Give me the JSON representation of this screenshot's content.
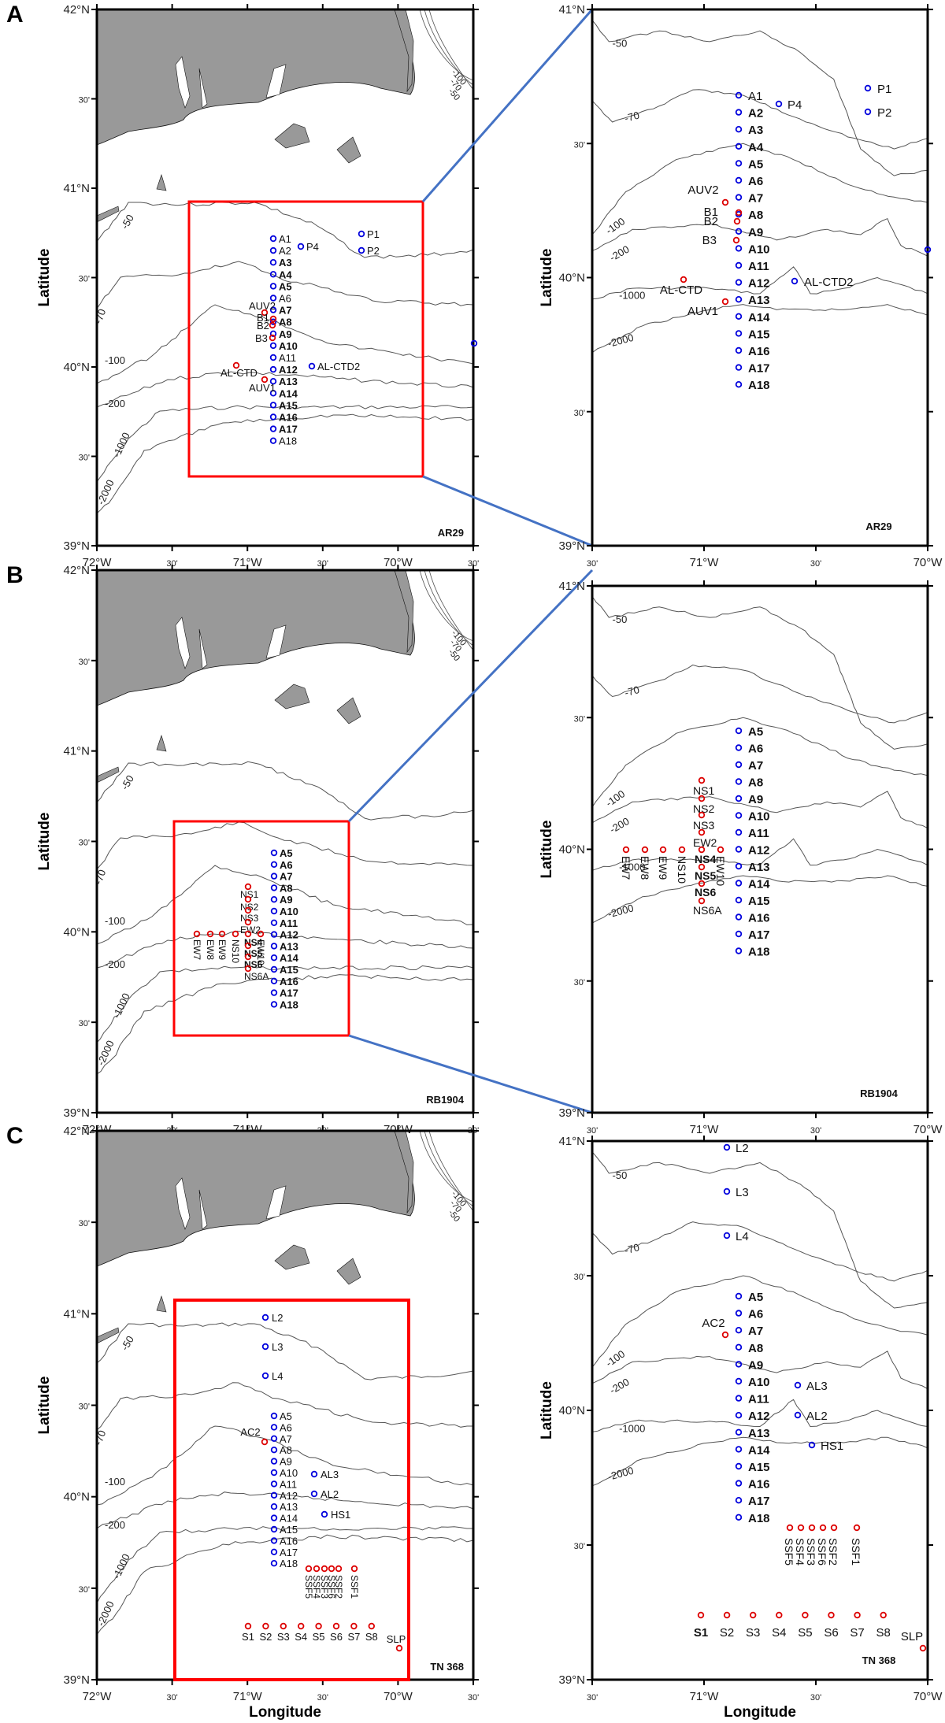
{
  "figure": {
    "panels": [
      {
        "letter": "A",
        "cruise": "AR29"
      },
      {
        "letter": "B",
        "cruise": "RB1904"
      },
      {
        "letter": "C",
        "cruise": "TN 368"
      }
    ],
    "ylabel": "Latitude",
    "xlabel": "Longitude",
    "overview_lat_ticks": [
      "42°N",
      "30'",
      "41°N",
      "30'",
      "40°N",
      "30'",
      "39°N"
    ],
    "overview_lon_ticks": [
      "72°W",
      "30'",
      "71°W",
      "30'",
      "70°W",
      "30'"
    ],
    "zoom_lat_ticks": [
      "41°N",
      "30'",
      "40°N",
      "30'",
      "39°N"
    ],
    "zoom_lon_ticks": [
      "30'",
      "71°W",
      "30'",
      "70°W"
    ],
    "contour_labels": [
      "-50",
      "-70",
      "-100",
      "-200",
      "-1000",
      "-2000"
    ],
    "colors": {
      "land": "#999999",
      "contour": "#555555",
      "box": "#ff0000",
      "connector": "#4472c4",
      "station_blue": "#0000dd",
      "station_red": "#dd0000"
    }
  },
  "chart_data": [
    {
      "type": "map",
      "title": "A",
      "cruise": "AR29",
      "xlabel": "Longitude",
      "ylabel": "Latitude",
      "extent": {
        "lon": [
          -72,
          -69.5
        ],
        "lat": [
          39,
          42
        ]
      },
      "zoom_extent": {
        "lon": [
          -71.5,
          -70
        ],
        "lat": [
          39,
          41
        ]
      },
      "isobaths_m": [
        -50,
        -70,
        -100,
        -200,
        -1000,
        -2000
      ],
      "stations_blue": [
        "A1",
        "A2",
        "A3",
        "A4",
        "A5",
        "A6",
        "A7",
        "A8",
        "A9",
        "A10",
        "A11",
        "A12",
        "A13",
        "A14",
        "A15",
        "A16",
        "A17",
        "A18",
        "P1",
        "P2",
        "P4",
        "AL-CTD2"
      ],
      "stations_red": [
        "AUV2",
        "B1",
        "B2",
        "B3",
        "AL-CTD",
        "AUV1"
      ]
    },
    {
      "type": "map",
      "title": "B",
      "cruise": "RB1904",
      "xlabel": "Longitude",
      "ylabel": "Latitude",
      "extent": {
        "lon": [
          -72,
          -69.5
        ],
        "lat": [
          39,
          42
        ]
      },
      "zoom_extent": {
        "lon": [
          -71.5,
          -70
        ],
        "lat": [
          39,
          41
        ]
      },
      "isobaths_m": [
        -50,
        -70,
        -100,
        -200,
        -1000,
        -2000
      ],
      "stations_blue": [
        "A5",
        "A6",
        "A7",
        "A8",
        "A9",
        "A10",
        "A11",
        "A12",
        "A13",
        "A14",
        "A15",
        "A16",
        "A17",
        "A18"
      ],
      "stations_red": [
        "NS1",
        "NS2",
        "NS3",
        "EW2",
        "NS4",
        "NS5",
        "NS6",
        "NS6A",
        "EW7",
        "EW8",
        "EW9",
        "NS10",
        "EW10"
      ]
    },
    {
      "type": "map",
      "title": "C",
      "cruise": "TN 368",
      "xlabel": "Longitude",
      "ylabel": "Latitude",
      "extent": {
        "lon": [
          -72,
          -69.5
        ],
        "lat": [
          39,
          42
        ]
      },
      "zoom_extent": {
        "lon": [
          -71.5,
          -70
        ],
        "lat": [
          39,
          41
        ]
      },
      "isobaths_m": [
        -50,
        -70,
        -100,
        -200,
        -1000,
        -2000
      ],
      "stations_blue": [
        "L2",
        "L3",
        "L4",
        "A5",
        "A6",
        "A7",
        "A8",
        "A9",
        "A10",
        "A11",
        "A12",
        "A13",
        "A14",
        "A15",
        "A16",
        "A17",
        "A18",
        "AL3",
        "AL2",
        "HS1"
      ],
      "stations_red": [
        "AC2",
        "SSF1",
        "SSF2",
        "SSF3",
        "SSF4",
        "SSF5",
        "SSF6",
        "S1",
        "S2",
        "S3",
        "S4",
        "S5",
        "S6",
        "S7",
        "S8",
        "SLP"
      ]
    }
  ]
}
